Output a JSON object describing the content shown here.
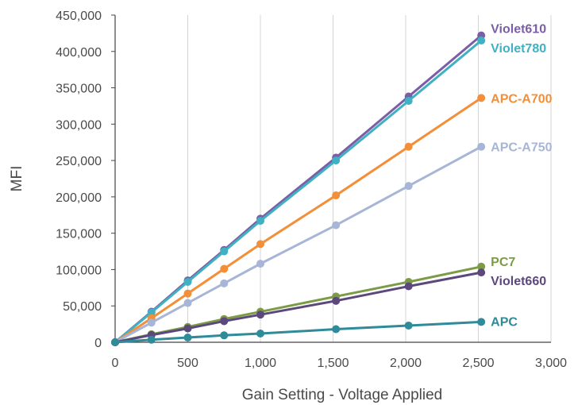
{
  "chart_data": {
    "type": "line",
    "title": "",
    "xlabel": "Gain Setting - Voltage Applied",
    "ylabel": "MFI",
    "xlim": [
      0,
      3000
    ],
    "ylim": [
      0,
      450000
    ],
    "x_ticks": [
      0,
      500,
      1000,
      1500,
      2000,
      2500,
      3000
    ],
    "y_ticks": [
      0,
      50000,
      100000,
      150000,
      200000,
      250000,
      300000,
      350000,
      400000,
      450000
    ],
    "x_tick_labels": [
      "0",
      "500",
      "1,000",
      "1,500",
      "2,000",
      "2,500",
      "3,000"
    ],
    "y_tick_labels": [
      "0",
      "50,000",
      "100,000",
      "150,000",
      "200,000",
      "250,000",
      "300,000",
      "350,000",
      "400,000",
      "450,000"
    ],
    "grid": {
      "x": true,
      "y": false
    },
    "legend": "none",
    "x": [
      0,
      250,
      500,
      750,
      1000,
      1520,
      2020,
      2520
    ],
    "series": [
      {
        "name": "Violet610",
        "color": "#7b5ea6",
        "values": [
          0,
          42000,
          85000,
          127000,
          170000,
          254000,
          338000,
          422000
        ]
      },
      {
        "name": "Violet780",
        "color": "#40b0c3",
        "values": [
          0,
          41000,
          83000,
          125000,
          167000,
          250000,
          332000,
          415000
        ]
      },
      {
        "name": "APC-A700",
        "color": "#f28f38",
        "values": [
          0,
          33000,
          67000,
          101000,
          135000,
          202000,
          269000,
          336000
        ]
      },
      {
        "name": "APC-A750",
        "color": "#a7b5d6",
        "values": [
          0,
          27000,
          54000,
          81000,
          108000,
          161000,
          215000,
          269000
        ]
      },
      {
        "name": "PC7",
        "color": "#7b9c45",
        "values": [
          0,
          11000,
          21000,
          32000,
          42000,
          63000,
          83000,
          104000
        ]
      },
      {
        "name": "Violet660",
        "color": "#5c487d",
        "values": [
          0,
          10000,
          19000,
          29000,
          38000,
          57000,
          77000,
          96000
        ]
      },
      {
        "name": "APC",
        "color": "#2f8a99",
        "values": [
          0,
          3500,
          6500,
          9500,
          12000,
          18000,
          23000,
          28000
        ]
      }
    ]
  }
}
